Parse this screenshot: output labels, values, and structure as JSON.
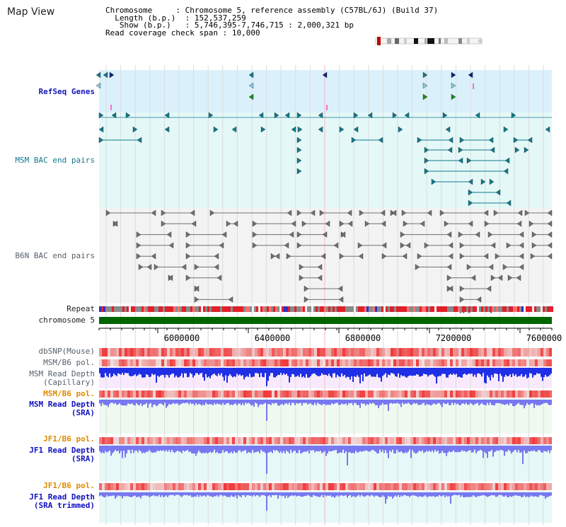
{
  "page": {
    "title": "Map View"
  },
  "info": {
    "chromosome_label": "Chromosome",
    "chromosome_value": "Chromosome 5, reference assembly (C57BL/6J) (Build 37)",
    "length_label": "Length (b.p.)",
    "length_value": "152,537,259",
    "show_label": "Show (b.p.)",
    "show_value": "5,746,395-7,746,715 : 2,000,321 bp",
    "coverage_label": "Read coverage check span",
    "coverage_value": "10,000"
  },
  "tracks": {
    "refseq_genes": "RefSeq Genes",
    "msm_bac": "MSM BAC end pairs",
    "b6n_bac": "B6N BAC end pairs",
    "repeat": "Repeat",
    "chromosome": "chromosome 5",
    "dbsnp": "dbSNP(Mouse)",
    "msm_b6_pol_1": "MSM/B6 pol.",
    "msm_depth_cap_1": "MSM Read Depth",
    "msm_depth_cap_2": "(Capillary)",
    "msm_b6_pol_2": "MSM/B6 pol.",
    "msm_depth_sra_1": "MSM Read Depth",
    "msm_depth_sra_2": "(SRA)",
    "jf1_b6_pol_1": "JF1/B6 pol.",
    "jf1_depth_sra_1": "JF1 Read Depth",
    "jf1_depth_sra_2": "(SRA)",
    "jf1_b6_pol_2": "JF1/B6 pol.",
    "jf1_depth_trim_1": "JF1 Read Depth",
    "jf1_depth_trim_2": "(SRA trimmed)"
  },
  "axis": {
    "ticks": [
      "6000000",
      "6400000",
      "6800000",
      "7200000",
      "7600000"
    ]
  },
  "colors": {
    "refseq_bg": "#daf1fb",
    "msm_bac_bg": "#e4f8f8",
    "b6n_bg": "#f3f3f3",
    "chromosome_bar": "#006400",
    "depth_blue": "#1f2fe6",
    "depth_light": "#7878f0",
    "polymorphism_red": "#f03c3c",
    "teal_feature": "#10788c"
  }
}
